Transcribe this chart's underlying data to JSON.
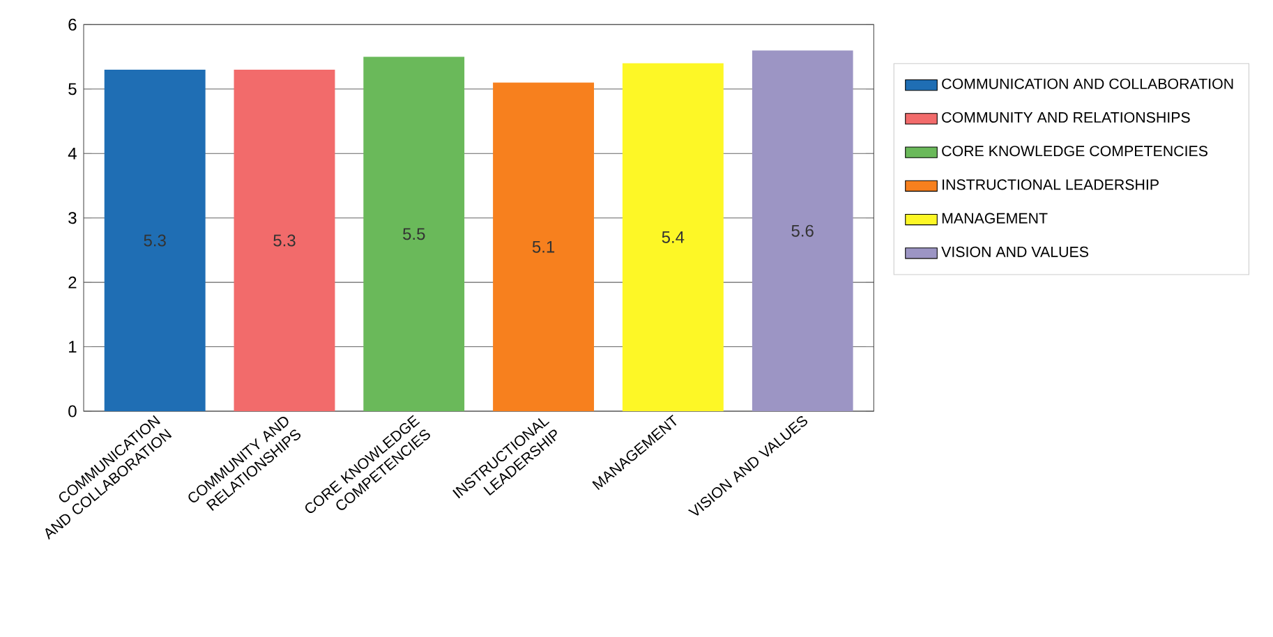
{
  "chart_data": {
    "type": "bar",
    "categories": [
      "COMMUNICATION AND COLLABORATION",
      "COMMUNITY AND RELATIONSHIPS",
      "CORE KNOWLEDGE COMPETENCIES",
      "INSTRUCTIONAL LEADERSHIP",
      "MANAGEMENT",
      "VISION AND VALUES"
    ],
    "series": [
      {
        "name": "COMMUNICATION AND COLLABORATION",
        "color": "#1f6eb4",
        "values": [
          5.3,
          null,
          null,
          null,
          null,
          null
        ]
      },
      {
        "name": "COMMUNITY AND RELATIONSHIPS",
        "color": "#f26b6b",
        "values": [
          null,
          5.3,
          null,
          null,
          null,
          null
        ]
      },
      {
        "name": "CORE KNOWLEDGE COMPETENCIES",
        "color": "#6ab95a",
        "values": [
          null,
          null,
          5.5,
          null,
          null,
          null
        ]
      },
      {
        "name": "INSTRUCTIONAL LEADERSHIP",
        "color": "#f7801e",
        "values": [
          null,
          null,
          null,
          5.1,
          null,
          null
        ]
      },
      {
        "name": "MANAGEMENT",
        "color": "#fdf726",
        "values": [
          null,
          null,
          null,
          null,
          5.4,
          null
        ]
      },
      {
        "name": "VISION AND VALUES",
        "color": "#9c95c4",
        "values": [
          null,
          null,
          null,
          null,
          null,
          5.6
        ]
      }
    ],
    "ylim": [
      0,
      6
    ],
    "yticks": [
      0,
      1,
      2,
      3,
      4,
      5,
      6
    ],
    "grid": "y",
    "data_labels": true,
    "legend": "right"
  }
}
